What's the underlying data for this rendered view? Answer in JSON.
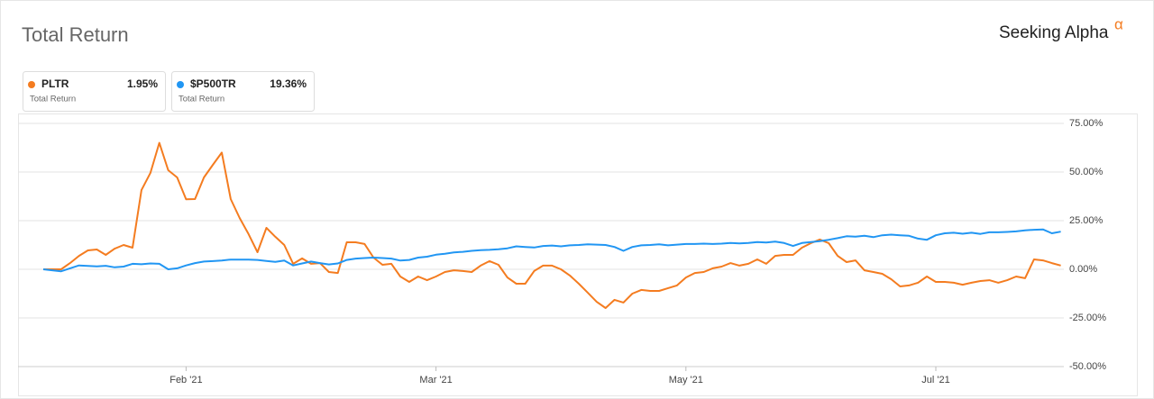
{
  "chart_data": {
    "type": "line",
    "title": "Total Return",
    "brand": "Seeking Alpha",
    "brand_mark": "α",
    "categories": [
      null,
      null,
      null,
      null,
      null,
      null,
      null,
      null,
      null,
      null,
      null,
      null,
      null,
      null,
      null,
      null,
      "Feb '21",
      null,
      null,
      null,
      null,
      null,
      null,
      null,
      null,
      null,
      null,
      null,
      null,
      null,
      null,
      null,
      null,
      null,
      null,
      null,
      null,
      null,
      null,
      null,
      null,
      null,
      null,
      null,
      "Mar '21",
      null,
      null,
      null,
      null,
      null,
      null,
      null,
      null,
      null,
      null,
      null,
      null,
      null,
      null,
      null,
      null,
      null,
      null,
      null,
      null,
      null,
      null,
      null,
      null,
      null,
      null,
      null,
      "May '21",
      null,
      null,
      null,
      null,
      null,
      null,
      null,
      null,
      null,
      null,
      null,
      null,
      null,
      null,
      null,
      null,
      null,
      null,
      null,
      null,
      null,
      null,
      null,
      null,
      null,
      null,
      null,
      "Jul '21",
      null,
      null,
      null,
      null,
      null,
      null,
      null,
      null,
      null,
      null,
      null,
      null,
      null,
      null
    ],
    "series": [
      {
        "name": "PLTR",
        "color": "#f47c20",
        "legend_value": "1.95%",
        "legend_subtitle": "Total Return",
        "values": [
          0,
          0,
          0,
          3.2,
          6.9,
          9.7,
          10.2,
          7.4,
          10.6,
          12.5,
          11.1,
          40.7,
          49.5,
          65,
          50.9,
          47.2,
          36,
          36.1,
          47.2,
          53.7,
          60,
          36.1,
          26.4,
          18.1,
          8.8,
          21.3,
          16.7,
          12.5,
          2.8,
          5.6,
          2.8,
          3.2,
          -1.4,
          -1.9,
          13.9,
          13.9,
          13,
          6,
          2.3,
          2.8,
          -3.7,
          -6.5,
          -3.7,
          -5.6,
          -3.7,
          -1.4,
          -0.5,
          -0.9,
          -1.4,
          1.9,
          4.2,
          2.3,
          -4.2,
          -7.4,
          -7.4,
          -0.9,
          1.9,
          1.9,
          0,
          -3.2,
          -7.4,
          -12,
          -16.7,
          -19.9,
          -15.7,
          -17.1,
          -12.5,
          -10.6,
          -11.1,
          -11.1,
          -9.7,
          -8.3,
          -4.2,
          -1.9,
          -1.4,
          0.5,
          1.4,
          3.2,
          1.9,
          2.8,
          5.1,
          2.8,
          6.9,
          7.4,
          7.4,
          11.1,
          13.4,
          15.3,
          13.4,
          6.9,
          3.7,
          4.6,
          -0.5,
          -1.4,
          -2.3,
          -5.1,
          -8.8,
          -8.3,
          -6.9,
          -3.7,
          -6.5,
          -6.5,
          -6.9,
          -7.9,
          -6.9,
          -6,
          -5.6,
          -6.9,
          -5.6,
          -3.7,
          -4.6,
          5.1,
          4.6,
          3.2,
          1.95
        ]
      },
      {
        "name": "$P500TR",
        "color": "#2196f3",
        "legend_value": "19.36%",
        "legend_subtitle": "Total Return",
        "values": [
          0,
          -0.5,
          -1,
          0.5,
          2,
          1.7,
          1.5,
          1.8,
          1,
          1.4,
          2.8,
          2.6,
          3,
          2.8,
          0,
          0.5,
          2,
          3.2,
          4,
          4.2,
          4.5,
          5,
          5,
          5,
          4.8,
          4.3,
          3.8,
          4.5,
          2,
          3,
          4,
          3.2,
          2.5,
          3,
          4.8,
          5.5,
          5.8,
          6,
          5.8,
          5.5,
          4.5,
          4.8,
          6,
          6.5,
          7.5,
          8,
          8.7,
          9,
          9.5,
          9.8,
          10,
          10.3,
          10.8,
          11.8,
          11.5,
          11.2,
          12,
          12.2,
          11.8,
          12.3,
          12.5,
          12.8,
          12.7,
          12.5,
          11.5,
          9.5,
          11.5,
          12.3,
          12.5,
          12.8,
          12.3,
          12.7,
          13,
          13,
          13.2,
          13,
          13.2,
          13.5,
          13.3,
          13.5,
          14,
          13.8,
          14.2,
          13.5,
          12,
          13.5,
          14,
          14.5,
          15.2,
          16,
          17,
          16.8,
          17.2,
          16.5,
          17.5,
          17.8,
          17.5,
          17.2,
          15.8,
          15.2,
          17.5,
          18.5,
          18.8,
          18.3,
          18.8,
          18.2,
          19,
          19,
          19.2,
          19.5,
          20,
          20.3,
          20.5,
          18.5,
          19.36
        ]
      }
    ],
    "ylim": [
      -50,
      78
    ],
    "yticks": [
      {
        "value": 75,
        "label": "75.00%"
      },
      {
        "value": 50,
        "label": "50.00%"
      },
      {
        "value": 25,
        "label": "25.00%"
      },
      {
        "value": 0,
        "label": "0.00%"
      },
      {
        "value": -25,
        "label": "-25.00%"
      },
      {
        "value": -50,
        "label": "-50.00%"
      }
    ],
    "grid": true
  }
}
